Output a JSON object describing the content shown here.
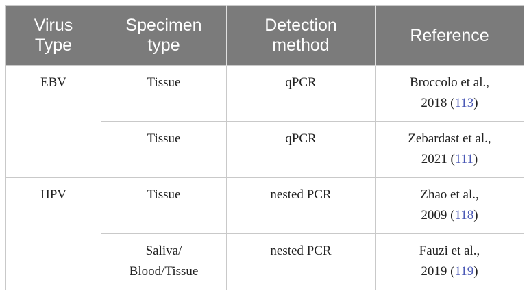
{
  "header": {
    "col1": [
      "Virus",
      "Type"
    ],
    "col2": [
      "Specimen",
      "type"
    ],
    "col3": [
      "Detection",
      "method"
    ],
    "col4": [
      "Reference"
    ]
  },
  "groups": [
    {
      "virus": "EBV",
      "rows": [
        {
          "specimen": [
            "Tissue"
          ],
          "method": "qPCR",
          "ref_authors": "Broccolo et al.,",
          "ref_year": "2018",
          "ref_num": "113"
        },
        {
          "specimen": [
            "Tissue"
          ],
          "method": "qPCR",
          "ref_authors": "Zebardast et al.,",
          "ref_year": "2021",
          "ref_num": "111"
        }
      ]
    },
    {
      "virus": "HPV",
      "rows": [
        {
          "specimen": [
            "Tissue"
          ],
          "method": "nested PCR",
          "ref_authors": "Zhao et al.,",
          "ref_year": "2009",
          "ref_num": "118"
        },
        {
          "specimen": [
            "Saliva/",
            "Blood/Tissue"
          ],
          "method": "nested PCR",
          "ref_authors": "Fauzi et al.,",
          "ref_year": "2019",
          "ref_num": "119"
        }
      ]
    }
  ]
}
